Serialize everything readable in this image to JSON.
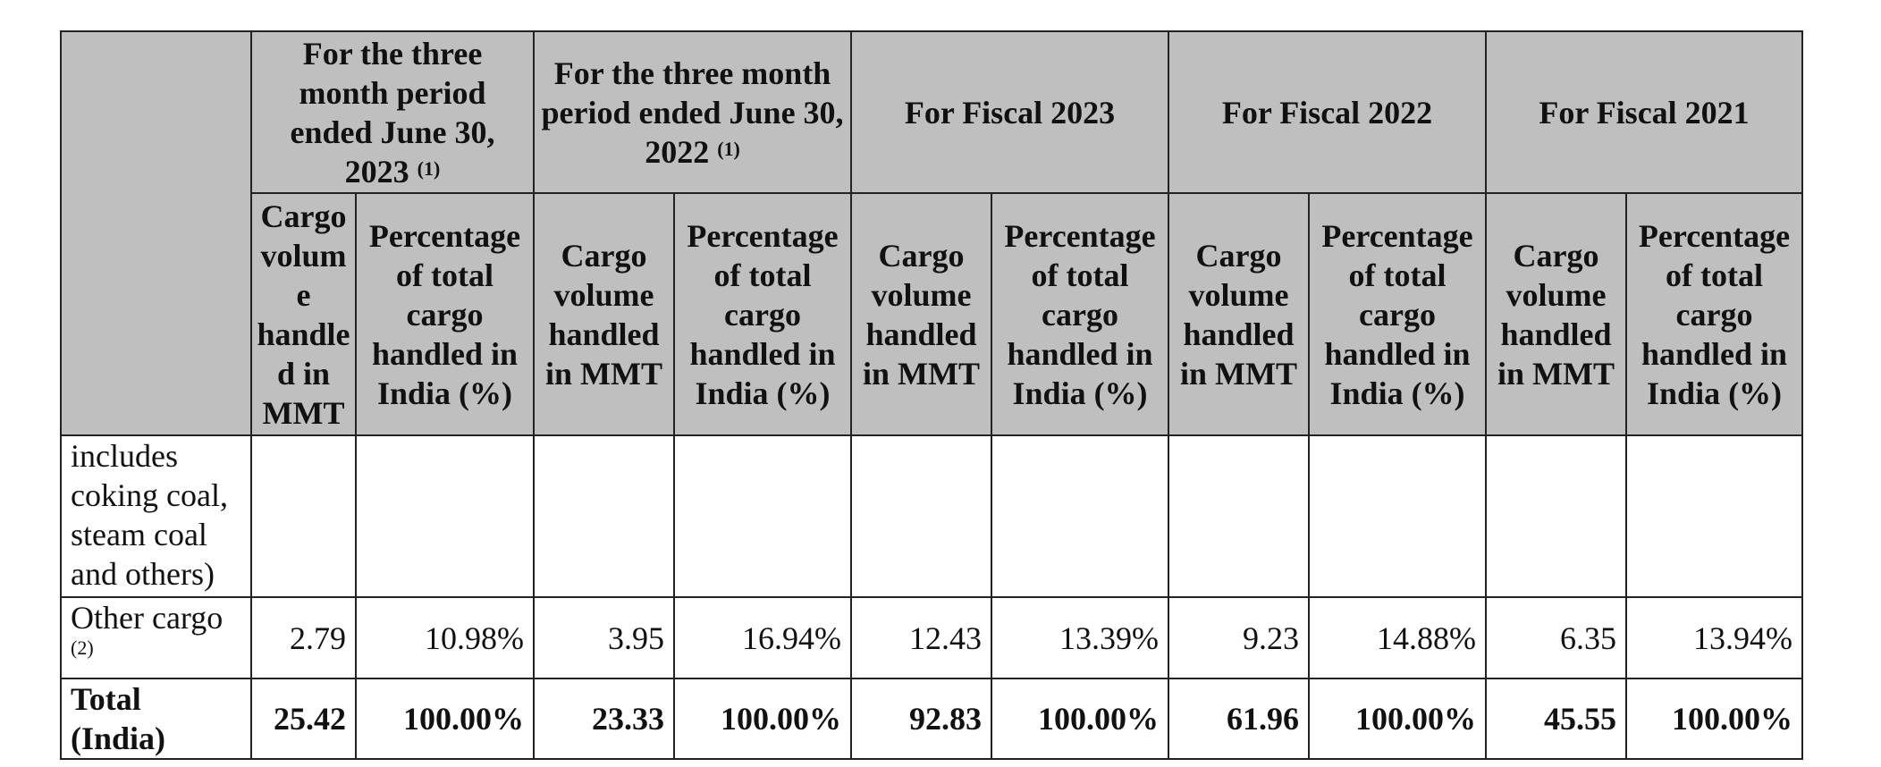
{
  "table": {
    "header_groups": [
      {
        "label": "For the three month period ended June 30, 2023",
        "note": "(1)"
      },
      {
        "label": "For the three month period ended June 30, 2022",
        "note": "(1)"
      },
      {
        "label": "For Fiscal 2023"
      },
      {
        "label": "For Fiscal 2022"
      },
      {
        "label": "For Fiscal 2021"
      }
    ],
    "sub_headers": [
      "Cargo volume handled in MMT",
      "Percentage of total cargo handled in India (%)",
      "Cargo volume handled in MMT",
      "Percentage of total cargo handled in India (%)",
      "Cargo volume handled in MMT",
      "Percentage of total cargo handled in India (%)",
      "Cargo volume handled in MMT",
      "Percentage of total cargo handled in India (%)",
      "Cargo volume handled in MMT",
      "Percentage of total cargo handled in India (%)"
    ],
    "rows": [
      {
        "label": "includes coking coal, steam coal and others)"
      },
      {
        "label": "Other cargo",
        "note": "(2)",
        "values": [
          "2.79",
          "10.98%",
          "3.95",
          "16.94%",
          "12.43",
          "13.39%",
          "9.23",
          "14.88%",
          "6.35",
          "13.94%"
        ]
      },
      {
        "label": "Total (India)",
        "bold": true,
        "values": [
          "25.42",
          "100.00%",
          "23.33",
          "100.00%",
          "92.83",
          "100.00%",
          "61.96",
          "100.00%",
          "45.55",
          "100.00%"
        ]
      }
    ]
  }
}
